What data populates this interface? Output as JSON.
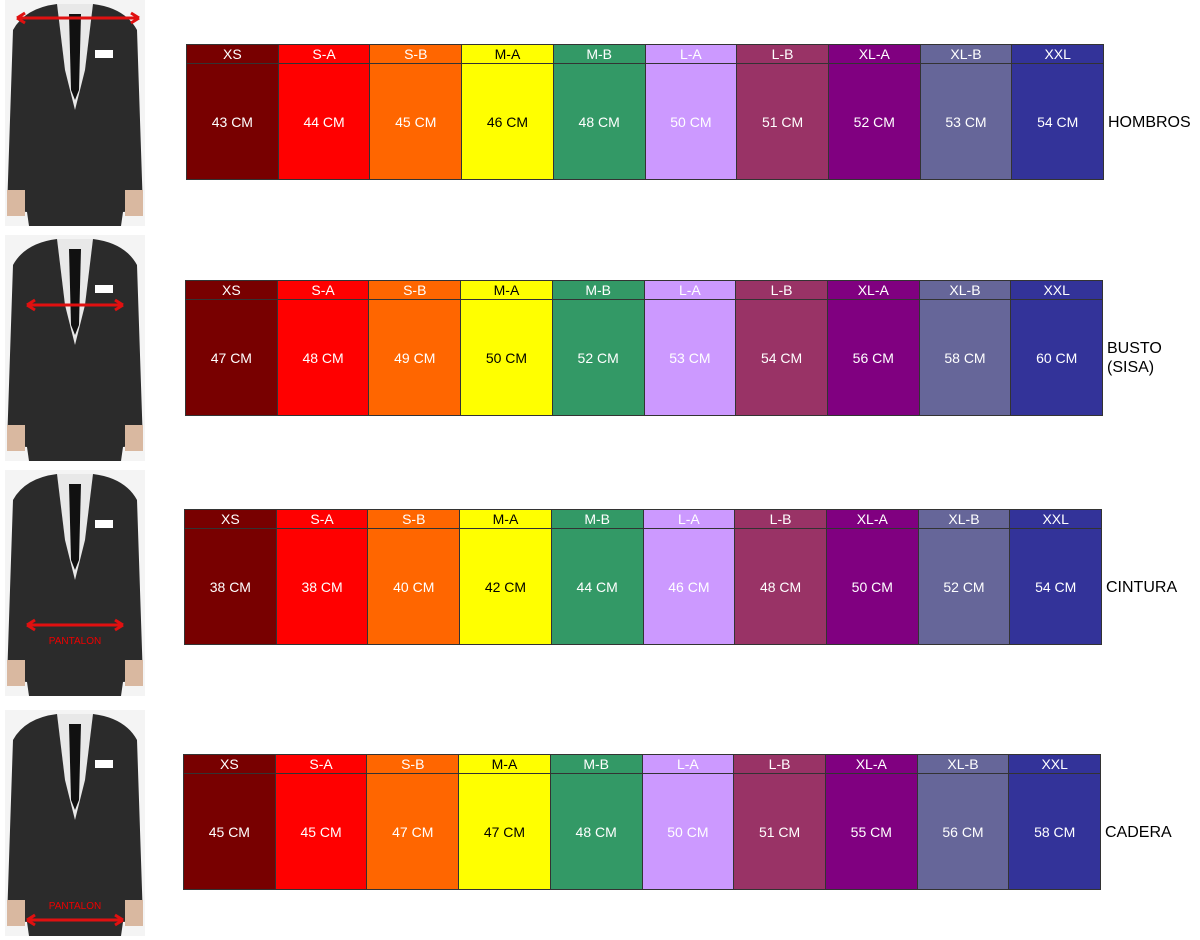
{
  "size_colors": [
    "#780000",
    "#ff0000",
    "#ff6600",
    "#ffff00",
    "#339966",
    "#cc99ff",
    "#993366",
    "#800080",
    "#666699",
    "#333399"
  ],
  "sections": [
    {
      "sizes": [
        "XS",
        "S-A",
        "S-B",
        "M-A",
        "M-B",
        "L-A",
        "L-B",
        "XL-A",
        "XL-B",
        "XXL"
      ],
      "values": [
        "43 CM",
        "44 CM",
        "45 CM",
        "46 CM",
        "48 CM",
        "50 CM",
        "51 CM",
        "52 CM",
        "53 CM",
        "54 CM"
      ],
      "label": [
        "HOMBROS"
      ]
    },
    {
      "sizes": [
        "XS",
        "S-A",
        "S-B",
        "M-A",
        "M-B",
        "L-A",
        "L-B",
        "XL-A",
        "XL-B",
        "XXL"
      ],
      "values": [
        "47 CM",
        "48 CM",
        "49 CM",
        "50 CM",
        "52 CM",
        "53 CM",
        "54 CM",
        "56 CM",
        "58 CM",
        "60 CM"
      ],
      "label": [
        "BUSTO",
        "(SISA)"
      ]
    },
    {
      "sizes": [
        "XS",
        "S-A",
        "S-B",
        "M-A",
        "M-B",
        "L-A",
        "L-B",
        "XL-A",
        "XL-B",
        "XXL"
      ],
      "values": [
        "38 CM",
        "38 CM",
        "40 CM",
        "42 CM",
        "44 CM",
        "46 CM",
        "48 CM",
        "50 CM",
        "52 CM",
        "54 CM"
      ],
      "label": [
        "CINTURA"
      ],
      "figure_note": "PANTALON"
    },
    {
      "sizes": [
        "XS",
        "S-A",
        "S-B",
        "M-A",
        "M-B",
        "L-A",
        "L-B",
        "XL-A",
        "XL-B",
        "XXL"
      ],
      "values": [
        "45 CM",
        "45 CM",
        "47 CM",
        "47 CM",
        "48 CM",
        "50 CM",
        "51 CM",
        "55 CM",
        "56 CM",
        "58 CM"
      ],
      "label": [
        "CADERA"
      ],
      "figure_note": "PANTALON"
    }
  ]
}
